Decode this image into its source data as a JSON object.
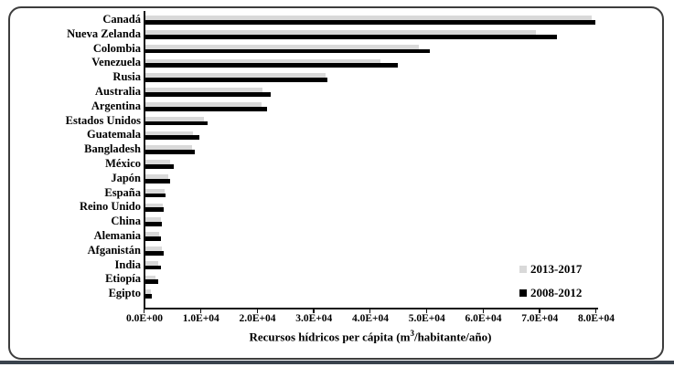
{
  "figure": {
    "frame_border_color": "#3d3d3d",
    "bottom_band_color": "#3a434d"
  },
  "chart_data": {
    "type": "bar",
    "orientation": "horizontal",
    "title": "",
    "xlabel": "Recursos hídricos per cápita (m³/habitante/año)",
    "xlabel_parts": {
      "prefix": "Recursos hídricos per cápita (m",
      "sup": "3",
      "suffix": "/habitante/año)"
    },
    "categories": [
      "Canadá",
      "Nueva Zelanda",
      "Colombia",
      "Venezuela",
      "Rusia",
      "Australia",
      "Argentina",
      "Estados Unidos",
      "Guatemala",
      "Bangladesh",
      "México",
      "Japón",
      "España",
      "Reino Unido",
      "China",
      "Alemania",
      "Afganistán",
      "India",
      "Etiopía",
      "Egipto"
    ],
    "series": [
      {
        "name": "2013-2017",
        "color": "#d9d9d9",
        "values": [
          79000,
          69100,
          48400,
          41600,
          31900,
          20700,
          20600,
          10300,
          8400,
          8300,
          4400,
          4000,
          3400,
          3100,
          2700,
          2500,
          2900,
          2300,
          1800,
          1000
        ]
      },
      {
        "name": "2008-2012",
        "color": "#000000",
        "values": [
          79600,
          72900,
          50300,
          44700,
          32200,
          22200,
          21500,
          11000,
          9500,
          8700,
          5000,
          4400,
          3600,
          3300,
          2900,
          2800,
          3200,
          2700,
          2300,
          1100
        ]
      }
    ],
    "xlim": [
      0,
      80000
    ],
    "x_ticks": [
      0,
      10000,
      20000,
      30000,
      40000,
      50000,
      60000,
      70000,
      80000
    ],
    "x_tick_labels": [
      "0.0E+00",
      "1.0E+04",
      "2.0E+04",
      "3.0E+04",
      "4.0E+04",
      "5.0E+04",
      "6.0E+04",
      "7.0E+04",
      "8.0E+04"
    ],
    "legend_position": "inside-bottom-right",
    "grid": false
  }
}
